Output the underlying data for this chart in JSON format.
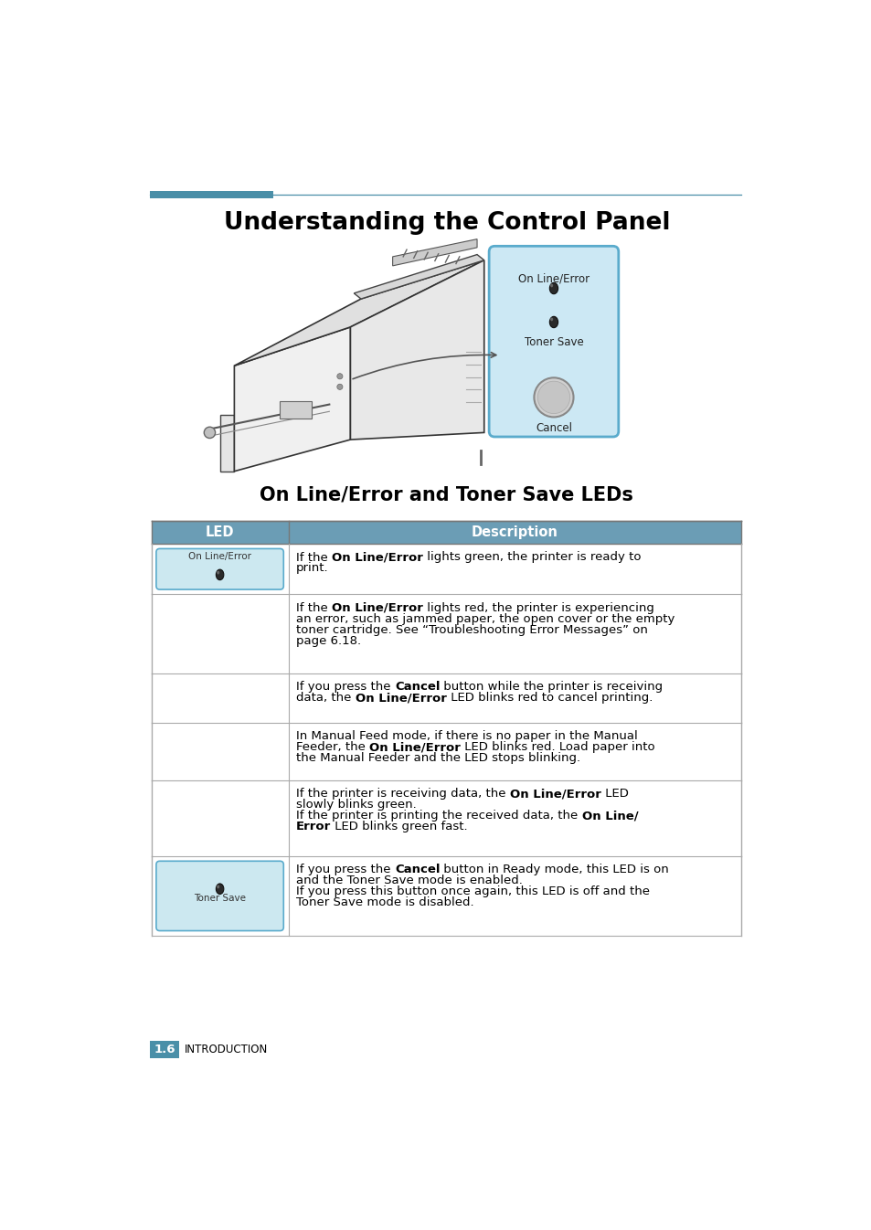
{
  "title": "Understanding the Control Panel",
  "subtitle": "On Line/Error and Toner Save LEDs",
  "header_line_color": "#4a8fa8",
  "header_fill_left": "#4a8fa8",
  "table_header_bg": "#6b9db5",
  "table_border_color": "#aaaaaa",
  "led_cell_bg": "#cce8f0",
  "led_cell_border": "#5aabcc",
  "page_bg": "#ffffff",
  "footer_box_color": "#4a8fa8",
  "footer_text": "1.6",
  "footer_label": "INTRODUCTION",
  "table_rows": [
    {
      "led": "On Line/Error",
      "desc_lines": [
        [
          {
            "t": "If the ",
            "b": false
          },
          {
            "t": "On Line/Error",
            "b": true
          },
          {
            "t": " lights green, the printer is ready to",
            "b": false
          }
        ],
        [
          {
            "t": "print.",
            "b": false
          }
        ]
      ]
    },
    {
      "led": null,
      "desc_lines": [
        [
          {
            "t": "If the ",
            "b": false
          },
          {
            "t": "On Line/Error",
            "b": true
          },
          {
            "t": " lights red, the printer is experiencing",
            "b": false
          }
        ],
        [
          {
            "t": "an error, such as jammed paper, the open cover or the empty",
            "b": false
          }
        ],
        [
          {
            "t": "toner cartridge. See “Troubleshooting Error Messages” on",
            "b": false
          }
        ],
        [
          {
            "t": "page 6.18.",
            "b": false
          }
        ]
      ]
    },
    {
      "led": null,
      "desc_lines": [
        [
          {
            "t": "If you press the ",
            "b": false
          },
          {
            "t": "Cancel",
            "b": true
          },
          {
            "t": " button while the printer is receiving",
            "b": false
          }
        ],
        [
          {
            "t": "data, the ",
            "b": false
          },
          {
            "t": "On Line/Error",
            "b": true
          },
          {
            "t": " LED blinks red to cancel printing.",
            "b": false
          }
        ]
      ]
    },
    {
      "led": null,
      "desc_lines": [
        [
          {
            "t": "In Manual Feed mode, if there is no paper in the Manual",
            "b": false
          }
        ],
        [
          {
            "t": "Feeder, the ",
            "b": false
          },
          {
            "t": "On Line/Error",
            "b": true
          },
          {
            "t": " LED blinks red. Load paper into",
            "b": false
          }
        ],
        [
          {
            "t": "the Manual Feeder and the LED stops blinking.",
            "b": false
          }
        ]
      ]
    },
    {
      "led": null,
      "desc_lines": [
        [
          {
            "t": "If the printer is receiving data, the ",
            "b": false
          },
          {
            "t": "On Line/Error",
            "b": true
          },
          {
            "t": " LED",
            "b": false
          }
        ],
        [
          {
            "t": "slowly blinks green.",
            "b": false
          }
        ],
        [
          {
            "t": "If the printer is printing the received data, the ",
            "b": false
          },
          {
            "t": "On Line/",
            "b": true
          }
        ],
        [
          {
            "t": "Error",
            "b": true
          },
          {
            "t": " LED blinks green fast.",
            "b": false
          }
        ]
      ]
    },
    {
      "led": "Toner Save",
      "desc_lines": [
        [
          {
            "t": "If you press the ",
            "b": false
          },
          {
            "t": "Cancel",
            "b": true
          },
          {
            "t": " button in Ready mode, this LED is on",
            "b": false
          }
        ],
        [
          {
            "t": "and the Toner Save mode is enabled.",
            "b": false
          }
        ],
        [
          {
            "t": "If you press this button once again, this LED is off and the",
            "b": false
          }
        ],
        [
          {
            "t": "Toner Save mode is disabled.",
            "b": false
          }
        ]
      ]
    }
  ]
}
